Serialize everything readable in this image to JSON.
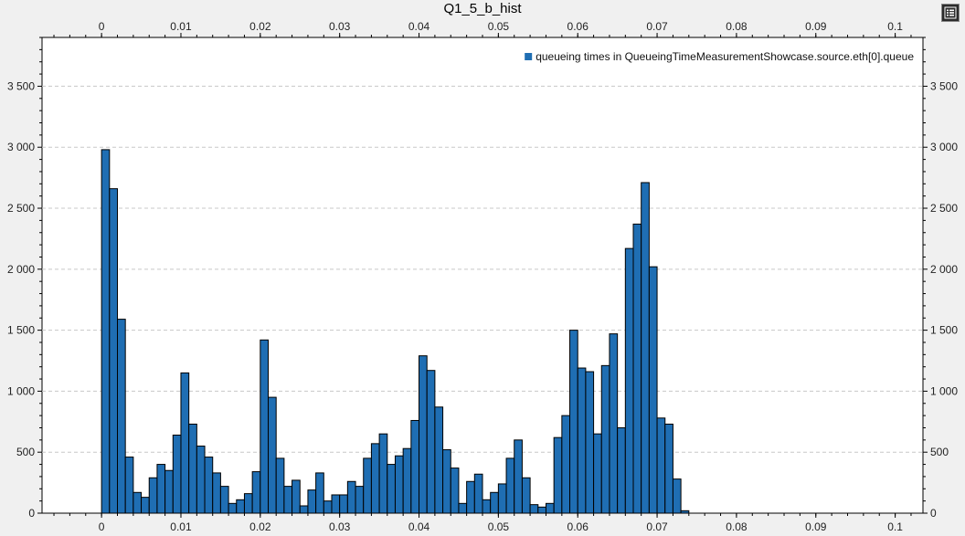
{
  "chart_data": {
    "type": "bar",
    "title": "Q1_5_b_hist",
    "legend": {
      "label": "queueing times in QueueingTimeMeasurementShowcase.source.eth[0].queue",
      "placement": "top-right",
      "color": "#1f6eb3"
    },
    "bin_width": 0.001,
    "xlim": [
      -0.0075,
      0.1035
    ],
    "ylim": [
      0,
      3900
    ],
    "x_ticks": [
      0,
      0.01,
      0.02,
      0.03,
      0.04,
      0.05,
      0.06,
      0.07,
      0.08,
      0.09,
      0.1
    ],
    "x_tick_labels": [
      "0",
      "0.01",
      "0.02",
      "0.03",
      "0.04",
      "0.05",
      "0.06",
      "0.07",
      "0.08",
      "0.09",
      "0.1"
    ],
    "y_ticks": [
      0,
      500,
      1000,
      1500,
      2000,
      2500,
      3000,
      3500
    ],
    "y_tick_labels": [
      "0",
      "500",
      "1 000",
      "1 500",
      "2 000",
      "2 500",
      "3 000",
      "3 500"
    ],
    "grid": true,
    "bin_starts": [
      0,
      0.001,
      0.002,
      0.003,
      0.004,
      0.005,
      0.006,
      0.007,
      0.008,
      0.009,
      0.01,
      0.011,
      0.012,
      0.013,
      0.014,
      0.015,
      0.016,
      0.017,
      0.018,
      0.019,
      0.02,
      0.021,
      0.022,
      0.023,
      0.024,
      0.025,
      0.026,
      0.027,
      0.028,
      0.029,
      0.03,
      0.031,
      0.032,
      0.033,
      0.034,
      0.035,
      0.036,
      0.037,
      0.038,
      0.039,
      0.04,
      0.041,
      0.042,
      0.043,
      0.044,
      0.045,
      0.046,
      0.047,
      0.048,
      0.049,
      0.05,
      0.051,
      0.052,
      0.053,
      0.054,
      0.055,
      0.056,
      0.057,
      0.058,
      0.059,
      0.06,
      0.061,
      0.062,
      0.063,
      0.064,
      0.065,
      0.066,
      0.067,
      0.068,
      0.069,
      0.07,
      0.071,
      0.072,
      0.073,
      0.074,
      0.075,
      0.076,
      0.077,
      0.078,
      0.079,
      0.08,
      0.081,
      0.082,
      0.083,
      0.084,
      0.085,
      0.086,
      0.087,
      0.088,
      0.089,
      0.09,
      0.091,
      0.092,
      0.093
    ],
    "values": [
      2980,
      2660,
      1590,
      460,
      170,
      130,
      290,
      400,
      350,
      640,
      1150,
      730,
      550,
      460,
      330,
      220,
      80,
      110,
      160,
      340,
      1420,
      950,
      450,
      220,
      270,
      60,
      190,
      330,
      100,
      150,
      150,
      260,
      220,
      450,
      570,
      650,
      400,
      470,
      530,
      760,
      1290,
      1170,
      870,
      520,
      370,
      80,
      260,
      320,
      110,
      170,
      240,
      450,
      600,
      290,
      70,
      50,
      80,
      620,
      800,
      1500,
      1190,
      1160,
      650,
      1210,
      1470,
      700,
      2170,
      2370,
      2710,
      2020,
      780,
      730,
      280,
      20,
      0,
      0,
      0,
      0,
      0,
      0,
      0,
      0,
      0,
      0,
      0,
      0,
      0,
      0,
      0,
      0,
      0,
      0,
      0,
      0
    ]
  },
  "ui": {
    "legend_toggle_icon": "legend-list-icon"
  }
}
